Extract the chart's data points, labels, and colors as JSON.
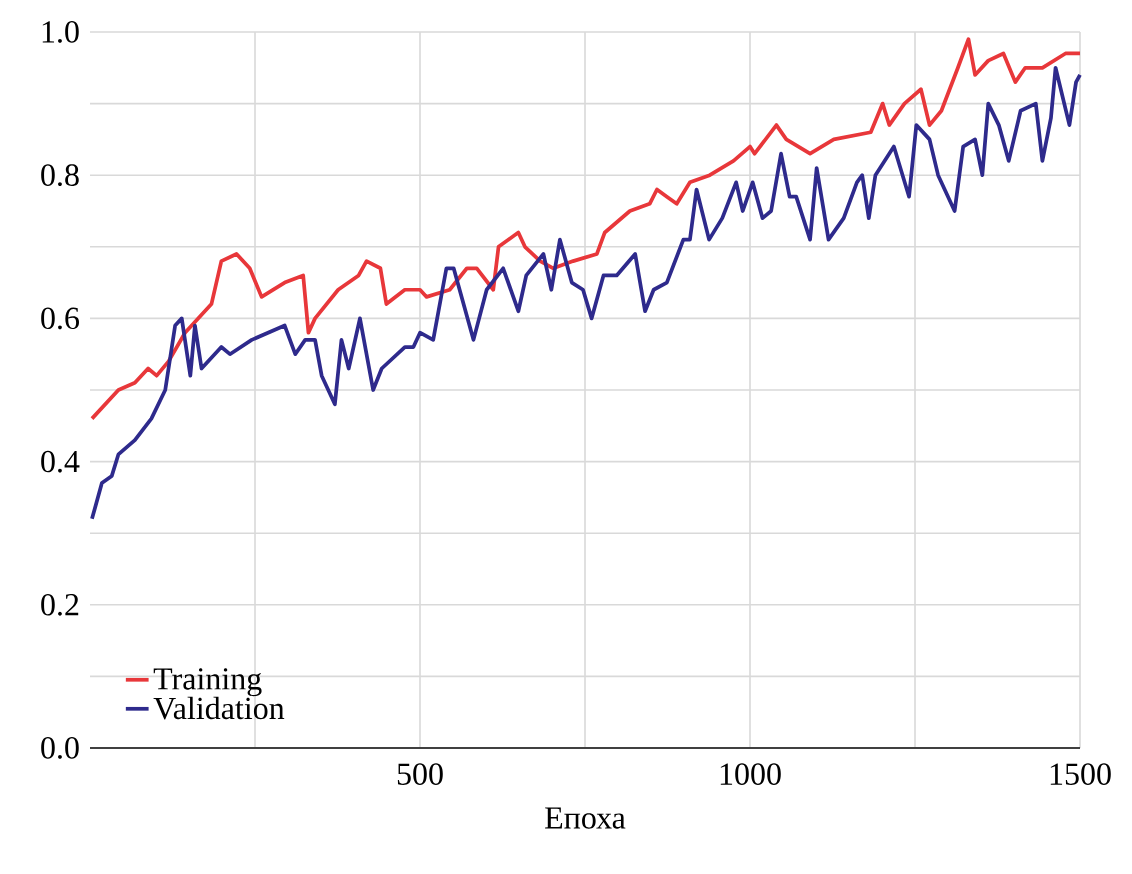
{
  "chart_data": {
    "type": "line",
    "xlabel": "Епоха",
    "xlim": [
      0,
      1500
    ],
    "ylim": [
      0,
      1
    ],
    "xticks": [
      {
        "value": 250,
        "label": null
      },
      500,
      {
        "value": 750,
        "label": null
      },
      1000,
      {
        "value": 1250,
        "label": null
      },
      1500
    ],
    "yticks": [
      {
        "value": 0,
        "label": "0.0"
      },
      {
        "value": 0.1,
        "label": null
      },
      0.2,
      {
        "value": 0.3,
        "label": null
      },
      0.4,
      {
        "value": 0.5,
        "label": null
      },
      0.6,
      {
        "value": 0.7,
        "label": null
      },
      0.8,
      {
        "value": 0.9,
        "label": null
      },
      {
        "value": 1,
        "label": "1.0"
      }
    ],
    "grid": true,
    "legend": "bottom left",
    "marker": "none",
    "line_style": "solid",
    "series": [
      {
        "name": "Training",
        "color": "#e8373a",
        "x": [
          3,
          43,
          68,
          88,
          101,
          119,
          144,
          164,
          184,
          199,
          222,
          242,
          260,
          295,
          323,
          331,
          341,
          376,
          407,
          419,
          440,
          449,
          477,
          500,
          510,
          545,
          571,
          586,
          611,
          619,
          649,
          659,
          682,
          702,
          732,
          768,
          780,
          818,
          848,
          859,
          874,
          889,
          909,
          939,
          975,
          1000,
          1007,
          1040,
          1055,
          1091,
          1127,
          1183,
          1201,
          1211,
          1234,
          1259,
          1272,
          1290,
          1315,
          1331,
          1341,
          1361,
          1384,
          1402,
          1417,
          1443,
          1478,
          1500
        ],
        "values": [
          0.46,
          0.5,
          0.51,
          0.53,
          0.52,
          0.54,
          0.58,
          0.6,
          0.62,
          0.68,
          0.69,
          0.67,
          0.63,
          0.65,
          0.66,
          0.58,
          0.6,
          0.64,
          0.66,
          0.68,
          0.67,
          0.62,
          0.64,
          0.64,
          0.63,
          0.64,
          0.67,
          0.67,
          0.64,
          0.7,
          0.72,
          0.7,
          0.68,
          0.67,
          0.68,
          0.69,
          0.72,
          0.75,
          0.76,
          0.78,
          0.77,
          0.76,
          0.79,
          0.8,
          0.82,
          0.84,
          0.83,
          0.87,
          0.85,
          0.83,
          0.85,
          0.86,
          0.9,
          0.87,
          0.9,
          0.92,
          0.87,
          0.89,
          0.95,
          0.99,
          0.94,
          0.96,
          0.97,
          0.93,
          0.95,
          0.95,
          0.97,
          0.97
        ]
      },
      {
        "name": "Validation",
        "color": "#2e2a8c",
        "x": [
          3,
          18,
          33,
          43,
          68,
          93,
          114,
          129,
          139,
          152,
          159,
          169,
          199,
          212,
          245,
          295,
          311,
          326,
          341,
          351,
          371,
          381,
          392,
          409,
          429,
          442,
          477,
          490,
          500,
          520,
          540,
          551,
          581,
          601,
          626,
          649,
          661,
          687,
          699,
          712,
          730,
          747,
          760,
          778,
          798,
          826,
          841,
          854,
          874,
          899,
          909,
          919,
          938,
          958,
          979,
          989,
          1004,
          1019,
          1032,
          1047,
          1060,
          1070,
          1091,
          1101,
          1119,
          1142,
          1162,
          1170,
          1180,
          1190,
          1218,
          1241,
          1252,
          1272,
          1285,
          1310,
          1323,
          1341,
          1352,
          1361,
          1377,
          1392,
          1410,
          1433,
          1443,
          1456,
          1463,
          1484,
          1494,
          1500
        ],
        "values": [
          0.32,
          0.37,
          0.38,
          0.41,
          0.43,
          0.46,
          0.5,
          0.59,
          0.6,
          0.52,
          0.59,
          0.53,
          0.56,
          0.55,
          0.57,
          0.59,
          0.55,
          0.57,
          0.57,
          0.52,
          0.48,
          0.57,
          0.53,
          0.6,
          0.5,
          0.53,
          0.56,
          0.56,
          0.58,
          0.57,
          0.67,
          0.67,
          0.57,
          0.64,
          0.67,
          0.61,
          0.66,
          0.69,
          0.64,
          0.71,
          0.65,
          0.64,
          0.6,
          0.66,
          0.66,
          0.69,
          0.61,
          0.64,
          0.65,
          0.71,
          0.71,
          0.78,
          0.71,
          0.74,
          0.79,
          0.75,
          0.79,
          0.74,
          0.75,
          0.83,
          0.77,
          0.77,
          0.71,
          0.81,
          0.71,
          0.74,
          0.79,
          0.8,
          0.74,
          0.8,
          0.84,
          0.77,
          0.87,
          0.85,
          0.8,
          0.75,
          0.84,
          0.85,
          0.8,
          0.9,
          0.87,
          0.82,
          0.89,
          0.9,
          0.82,
          0.88,
          0.95,
          0.87,
          0.93,
          0.94
        ]
      }
    ]
  }
}
